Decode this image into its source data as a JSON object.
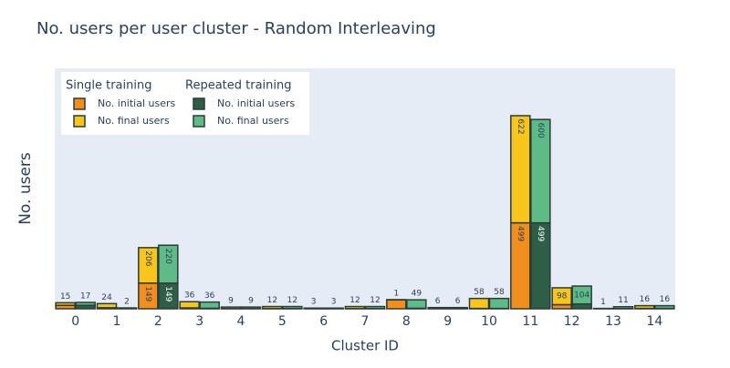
{
  "chart_data": {
    "type": "bar",
    "title": "No. users per user cluster - Random Interleaving",
    "x_label": "Cluster ID",
    "y_label": "No. users",
    "categories": [
      "0",
      "1",
      "2",
      "3",
      "4",
      "5",
      "6",
      "7",
      "8",
      "9",
      "10",
      "11",
      "12",
      "13",
      "14"
    ],
    "legend_groups": [
      "Single training",
      "Repeated training"
    ],
    "series": [
      {
        "name": "No. initial users",
        "group": 0,
        "color": "#f28e1c",
        "values": [
          20,
          6,
          149,
          5,
          1,
          1,
          1,
          1,
          52,
          1,
          2,
          499,
          24,
          1,
          2
        ]
      },
      {
        "name": "No. final users",
        "group": 0,
        "color": "#f8c51c",
        "values": [
          15,
          24,
          206,
          36,
          9,
          12,
          3,
          12,
          1,
          6,
          58,
          622,
          98,
          1,
          16
        ]
      },
      {
        "name": "No. initial users",
        "group": 1,
        "color": "#2e5e45",
        "values": [
          20,
          3,
          149,
          3,
          1,
          1,
          1,
          1,
          3,
          1,
          2,
          499,
          28,
          1,
          2
        ]
      },
      {
        "name": "No. final users",
        "group": 1,
        "color": "#5fbb85",
        "values": [
          17,
          2,
          220,
          36,
          9,
          12,
          3,
          12,
          49,
          6,
          58,
          600,
          104,
          11,
          16
        ]
      }
    ],
    "ylim": [
      0,
      1396
    ]
  }
}
